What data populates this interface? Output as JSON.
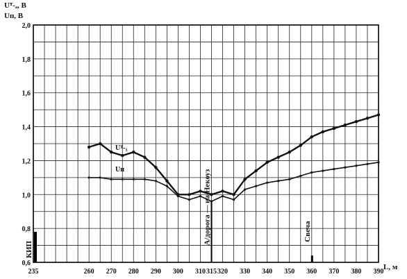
{
  "chart_data": {
    "type": "line",
    "ylabel_lines": [
      "Uᵀ‑ₐ, В",
      "Uп, В"
    ],
    "xlabel": "L, м",
    "xlim": [
      235,
      390
    ],
    "ylim": [
      0.6,
      2.0
    ],
    "grid": true,
    "x_ticks": [
      235,
      260,
      270,
      280,
      290,
      300,
      310,
      315,
      320,
      330,
      340,
      350,
      360,
      370,
      380,
      390
    ],
    "x_tick_labels": [
      "235",
      "260",
      "270",
      "280",
      "290",
      "300",
      "310",
      "315",
      "320",
      "330",
      "340",
      "350",
      "360",
      "370",
      "380",
      "390"
    ],
    "y_ticks": [
      0.6,
      0.8,
      1.0,
      1.2,
      1.4,
      1.6,
      1.8,
      2.0
    ],
    "y_tick_labels": [
      "0,6",
      "0,8",
      "1,0",
      "1,2",
      "1,4",
      "1,6",
      "1,8",
      "2,0"
    ],
    "series": [
      {
        "name": "Uт-з",
        "color": "#111111",
        "points": [
          [
            260,
            1.28
          ],
          [
            265,
            1.3
          ],
          [
            270,
            1.25
          ],
          [
            275,
            1.23
          ],
          [
            280,
            1.25
          ],
          [
            285,
            1.22
          ],
          [
            290,
            1.16
          ],
          [
            295,
            1.08
          ],
          [
            300,
            1.0
          ],
          [
            305,
            1.0
          ],
          [
            310,
            1.02
          ],
          [
            315,
            1.0
          ],
          [
            320,
            1.02
          ],
          [
            325,
            1.0
          ],
          [
            330,
            1.09
          ],
          [
            335,
            1.14
          ],
          [
            340,
            1.19
          ],
          [
            345,
            1.22
          ],
          [
            350,
            1.25
          ],
          [
            355,
            1.29
          ],
          [
            360,
            1.34
          ],
          [
            365,
            1.37
          ],
          [
            370,
            1.39
          ],
          [
            375,
            1.41
          ],
          [
            380,
            1.43
          ],
          [
            385,
            1.45
          ],
          [
            390,
            1.47
          ]
        ]
      },
      {
        "name": "Uп",
        "color": "#111111",
        "points": [
          [
            260,
            1.1
          ],
          [
            265,
            1.1
          ],
          [
            270,
            1.09
          ],
          [
            275,
            1.09
          ],
          [
            280,
            1.09
          ],
          [
            285,
            1.09
          ],
          [
            290,
            1.08
          ],
          [
            295,
            1.05
          ],
          [
            300,
            0.99
          ],
          [
            305,
            0.97
          ],
          [
            310,
            0.99
          ],
          [
            315,
            0.96
          ],
          [
            320,
            0.99
          ],
          [
            325,
            0.97
          ],
          [
            330,
            1.03
          ],
          [
            335,
            1.05
          ],
          [
            340,
            1.07
          ],
          [
            345,
            1.08
          ],
          [
            350,
            1.09
          ],
          [
            355,
            1.11
          ],
          [
            360,
            1.13
          ],
          [
            365,
            1.14
          ],
          [
            370,
            1.15
          ],
          [
            375,
            1.16
          ],
          [
            380,
            1.17
          ],
          [
            385,
            1.18
          ],
          [
            390,
            1.19
          ]
        ]
      }
    ],
    "series_labels": [
      "Uᵀ‑₃",
      "Uп"
    ],
    "annotations": [
      {
        "text": "КИП",
        "x": 235
      },
      {
        "text": "А/дорога — на Некоуз",
        "x": 315
      },
      {
        "text": "Свеча",
        "x": 360
      }
    ]
  }
}
